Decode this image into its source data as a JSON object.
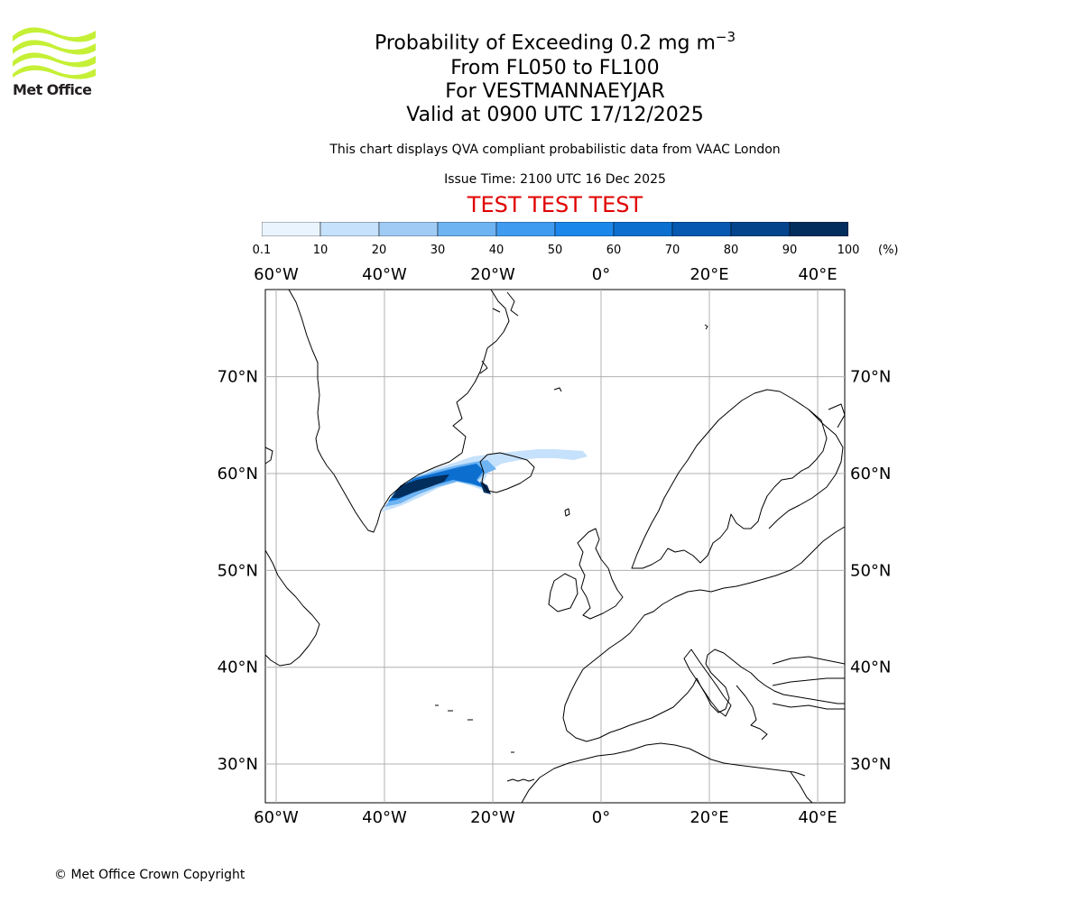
{
  "logo": {
    "text": "Met Office",
    "icon": "met-office-wave-logo",
    "color": "#c5f036"
  },
  "header": {
    "title_prefix": "Probability of Exceeding 0.2 mg m",
    "title_exponent": "−3",
    "levels": "From FL050 to FL100",
    "location": "For VESTMANNAEYJAR",
    "valid": "Valid at 0900 UTC 17/12/2025",
    "description": "This chart displays QVA compliant probabilistic data from VAAC London",
    "issue_time": "Issue Time: 2100 UTC 16 Dec 2025",
    "test_banner": "TEST TEST TEST",
    "test_color": "#e00000"
  },
  "colorbar": {
    "ticks": [
      "0.1",
      "10",
      "20",
      "30",
      "40",
      "50",
      "60",
      "70",
      "80",
      "90",
      "100"
    ],
    "unit": "(%)",
    "colors": [
      "#eaf4ff",
      "#c6e1fb",
      "#9fcbf5",
      "#6eb3f2",
      "#3f9bf0",
      "#1c87eb",
      "#0c6fd0",
      "#0658b0",
      "#03448c",
      "#022e5e"
    ]
  },
  "map": {
    "projection": "lat-lon",
    "lon_range": [
      -62,
      45
    ],
    "lat_range": [
      26,
      79
    ],
    "lon_ticks": [
      "60°W",
      "40°W",
      "20°W",
      "0°",
      "20°E",
      "40°E"
    ],
    "lat_ticks": [
      "70°N",
      "60°N",
      "50°N",
      "40°N",
      "30°N"
    ],
    "plume_source": "Vestmannaeyjar, Iceland"
  },
  "footer": {
    "copyright": "© Met Office Crown Copyright"
  }
}
